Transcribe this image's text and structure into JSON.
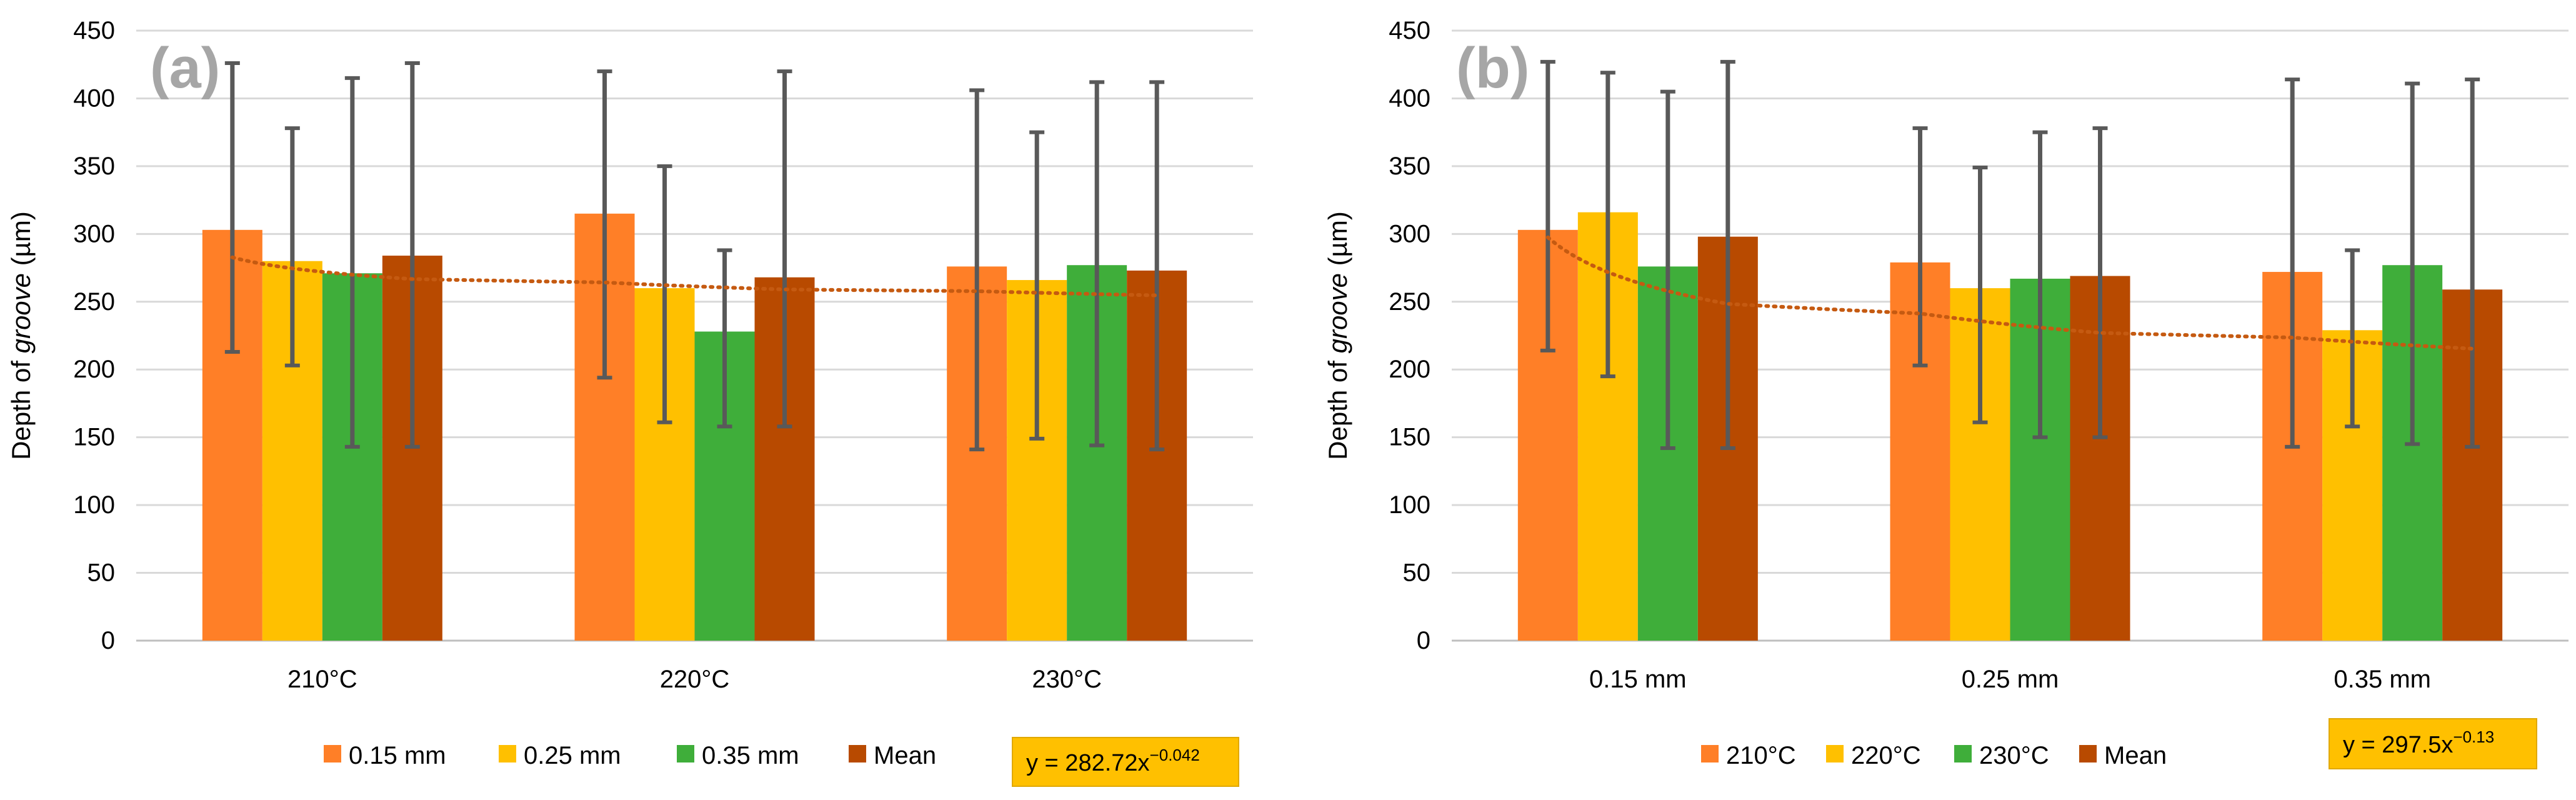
{
  "colors": {
    "s1": "#FF7F27",
    "s2": "#FFC000",
    "s3": "#3FAE3A",
    "s4": "#B84A00",
    "trend": "#C55A11",
    "error": "#595959",
    "grid": "#D9D9D9",
    "axis_text": "#000000",
    "panel_label": "#A6A6A6",
    "equation_bg": "#FFC000"
  },
  "chart_data": [
    {
      "type": "bar",
      "panel_label": "(a)",
      "ylabel_pre": "Depth of ",
      "ylabel_italic": "groove",
      "ylabel_post": " (µm)",
      "xlabel": "",
      "ylim": [
        0,
        450
      ],
      "yticks": [
        0,
        50,
        100,
        150,
        200,
        250,
        300,
        350,
        400,
        450
      ],
      "grid": true,
      "legend_position": "bottom-center",
      "categories": [
        "210°C",
        "220°C",
        "230°C"
      ],
      "series": [
        {
          "name": "0.15 mm",
          "color_key": "s1",
          "values": [
            303,
            315,
            276
          ],
          "err_low": [
            213,
            194,
            141
          ],
          "err_high": [
            426,
            420,
            406
          ]
        },
        {
          "name": "0.25 mm",
          "color_key": "s2",
          "values": [
            280,
            260,
            266
          ],
          "err_low": [
            203,
            161,
            149
          ],
          "err_high": [
            378,
            350,
            375
          ]
        },
        {
          "name": "0.35 mm",
          "color_key": "s3",
          "values": [
            271,
            228,
            277
          ],
          "err_low": [
            143,
            158,
            144
          ],
          "err_high": [
            415,
            288,
            412
          ]
        },
        {
          "name": "Mean",
          "color_key": "s4",
          "values": [
            284,
            268,
            273
          ],
          "err_low": [
            143,
            158,
            141
          ],
          "err_high": [
            426,
            420,
            412
          ]
        }
      ],
      "trendline": {
        "type": "power",
        "a": 282.72,
        "b": -0.042
      },
      "equation": {
        "base": "y = 282.72x",
        "exp": "−0.042"
      }
    },
    {
      "type": "bar",
      "panel_label": "(b)",
      "ylabel_pre": "Depth of ",
      "ylabel_italic": "groove",
      "ylabel_post": " (µm)",
      "xlabel": "",
      "ylim": [
        0,
        450
      ],
      "yticks": [
        0,
        50,
        100,
        150,
        200,
        250,
        300,
        350,
        400,
        450
      ],
      "grid": true,
      "legend_position": "bottom-center",
      "categories": [
        "0.15 mm",
        "0.25 mm",
        "0.35 mm"
      ],
      "series": [
        {
          "name": "210°C",
          "color_key": "s1",
          "values": [
            303,
            279,
            272
          ],
          "err_low": [
            214,
            203,
            143
          ],
          "err_high": [
            427,
            378,
            414
          ]
        },
        {
          "name": "220°C",
          "color_key": "s2",
          "values": [
            316,
            260,
            229
          ],
          "err_low": [
            195,
            161,
            158
          ],
          "err_high": [
            419,
            349,
            288
          ]
        },
        {
          "name": "230°C",
          "color_key": "s3",
          "values": [
            276,
            267,
            277
          ],
          "err_low": [
            142,
            150,
            145
          ],
          "err_high": [
            405,
            375,
            411
          ]
        },
        {
          "name": "Mean",
          "color_key": "s4",
          "values": [
            298,
            269,
            259
          ],
          "err_low": [
            142,
            150,
            143
          ],
          "err_high": [
            427,
            378,
            414
          ]
        }
      ],
      "trendline": {
        "type": "power",
        "a": 297.5,
        "b": -0.13
      },
      "equation": {
        "base": "y = 297.5x",
        "exp": "−0.13"
      }
    }
  ]
}
